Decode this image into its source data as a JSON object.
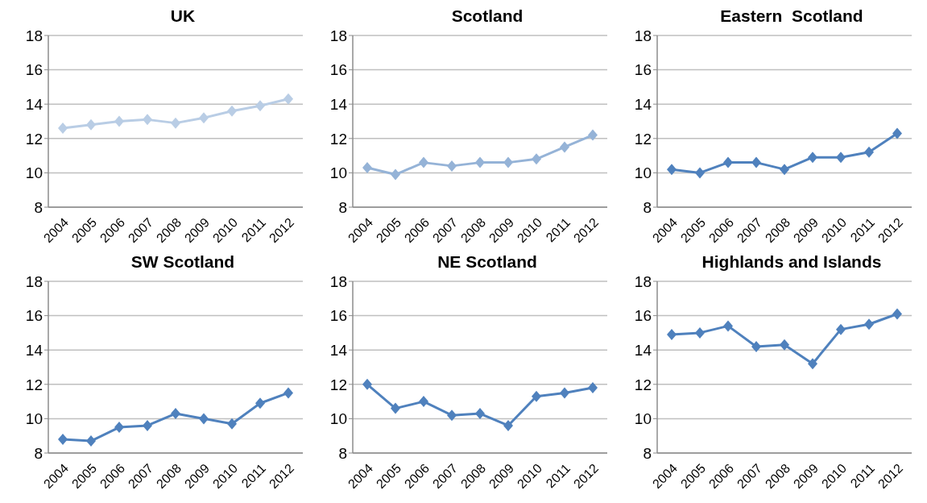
{
  "chart_data": [
    {
      "type": "line",
      "title": "UK",
      "categories": [
        "2004",
        "2005",
        "2006",
        "2007",
        "2008",
        "2009",
        "2010",
        "2011",
        "2012"
      ],
      "series": [
        {
          "color": "#b9cde5",
          "values": [
            12.6,
            12.8,
            13.0,
            13.1,
            12.9,
            13.2,
            13.6,
            13.9,
            14.3
          ]
        }
      ],
      "ylim": [
        8,
        18
      ],
      "yticks": [
        8,
        10,
        12,
        14,
        16,
        18
      ],
      "grid": "y",
      "marker": "diamond"
    },
    {
      "type": "line",
      "title": "Scotland",
      "categories": [
        "2004",
        "2005",
        "2006",
        "2007",
        "2008",
        "2009",
        "2010",
        "2011",
        "2012"
      ],
      "series": [
        {
          "color": "#95b3d7",
          "values": [
            10.3,
            9.9,
            10.6,
            10.4,
            10.6,
            10.6,
            10.8,
            11.5,
            12.2
          ]
        }
      ],
      "ylim": [
        8,
        18
      ],
      "yticks": [
        8,
        10,
        12,
        14,
        16,
        18
      ],
      "grid": "y",
      "marker": "diamond"
    },
    {
      "type": "line",
      "title": "Eastern  Scotland",
      "categories": [
        "2004",
        "2005",
        "2006",
        "2007",
        "2008",
        "2009",
        "2010",
        "2011",
        "2012"
      ],
      "series": [
        {
          "color": "#4f81bd",
          "values": [
            10.2,
            10.0,
            10.6,
            10.6,
            10.2,
            10.9,
            10.9,
            11.2,
            12.3
          ]
        }
      ],
      "ylim": [
        8,
        18
      ],
      "yticks": [
        8,
        10,
        12,
        14,
        16,
        18
      ],
      "grid": "y",
      "marker": "diamond"
    },
    {
      "type": "line",
      "title": "SW Scotland",
      "categories": [
        "2004",
        "2005",
        "2006",
        "2007",
        "2008",
        "2009",
        "2010",
        "2011",
        "2012"
      ],
      "series": [
        {
          "color": "#4f81bd",
          "values": [
            8.8,
            8.7,
            9.5,
            9.6,
            10.3,
            10.0,
            9.7,
            10.9,
            11.5
          ]
        }
      ],
      "ylim": [
        8,
        18
      ],
      "yticks": [
        8,
        10,
        12,
        14,
        16,
        18
      ],
      "grid": "y",
      "marker": "diamond"
    },
    {
      "type": "line",
      "title": "NE Scotland",
      "categories": [
        "2004",
        "2005",
        "2006",
        "2007",
        "2008",
        "2009",
        "2010",
        "2011",
        "2012"
      ],
      "series": [
        {
          "color": "#4f81bd",
          "values": [
            12.0,
            10.6,
            11.0,
            10.2,
            10.3,
            9.6,
            11.3,
            11.5,
            11.8
          ]
        }
      ],
      "ylim": [
        8,
        18
      ],
      "yticks": [
        8,
        10,
        12,
        14,
        16,
        18
      ],
      "grid": "y",
      "marker": "diamond"
    },
    {
      "type": "line",
      "title": "Highlands and Islands",
      "categories": [
        "2004",
        "2005",
        "2006",
        "2007",
        "2008",
        "2009",
        "2010",
        "2011",
        "2012"
      ],
      "series": [
        {
          "color": "#4f81bd",
          "values": [
            14.9,
            15.0,
            15.4,
            14.2,
            14.3,
            13.2,
            15.2,
            15.5,
            16.1
          ]
        }
      ],
      "ylim": [
        8,
        18
      ],
      "yticks": [
        8,
        10,
        12,
        14,
        16,
        18
      ],
      "grid": "y",
      "marker": "diamond"
    }
  ]
}
